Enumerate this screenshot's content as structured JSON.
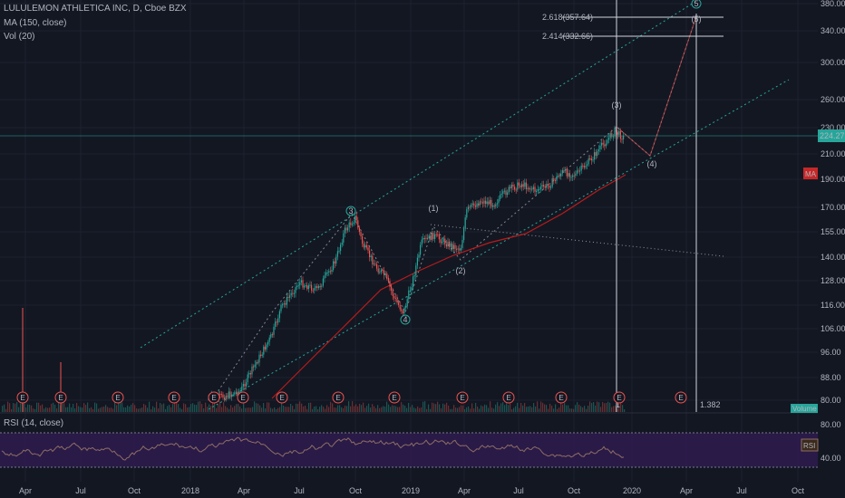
{
  "legend": {
    "symbol": "LULULEMON ATHLETICA INC, D, Cboe BZX",
    "ma": "MA (150, close)",
    "vol": "Vol (20)",
    "rsi": "RSI (14, close)"
  },
  "price_axis": {
    "ticks": [
      "380.00",
      "340.00",
      "300.00",
      "260.00",
      "230.00",
      "210.00",
      "190.00",
      "170.00",
      "155.00",
      "140.00",
      "128.00",
      "116.00",
      "106.00",
      "96.00",
      "88.00",
      "80.00"
    ],
    "current_price": "224.27",
    "ma_badge": "MA",
    "volume_badge": "Volume"
  },
  "rsi_axis": {
    "ticks": [
      "80.00",
      "40.00"
    ],
    "badge": "RSI"
  },
  "time_axis": {
    "ticks": [
      "Apr",
      "Jul",
      "Oct",
      "2018",
      "Apr",
      "Jul",
      "Oct",
      "2019",
      "Apr",
      "Jul",
      "Oct",
      "2020",
      "Apr",
      "Jul",
      "Oct"
    ]
  },
  "fib_levels": [
    {
      "label": "2.618(357.64)"
    },
    {
      "label": "2.414(332.66)"
    }
  ],
  "measure_label": "1.382",
  "wave_labels": {
    "green": [
      "3",
      "4",
      "5"
    ],
    "red": [
      "(1)",
      "(2)",
      "(3)",
      "(4)",
      "(5)"
    ]
  },
  "earnings_marker": "E",
  "colors": {
    "background": "#131722",
    "up": "#26a69a",
    "down": "#ef5350",
    "ma_line": "#b71c1c",
    "channel": "#26a69a",
    "rsi_band": "#311b52",
    "rsi_line": "#8d6e63"
  }
}
